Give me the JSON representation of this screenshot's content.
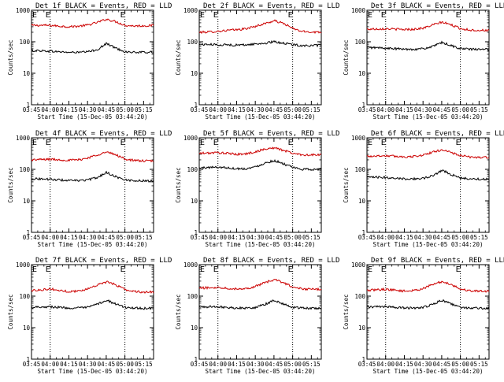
{
  "chart_data": [
    {
      "type": "line",
      "title": "Det 1f BLACK = Events, RED = LLD",
      "xlabel": "Start Time (15-Dec-05 03:44:20)",
      "ylabel": "Counts/sec",
      "yscale": "log",
      "ylim": [
        1,
        1000
      ],
      "xlim_minutes": [
        0,
        98
      ],
      "x_ticks": [
        "03:45",
        "04:00",
        "04:15",
        "04:30",
        "04:45",
        "05:00",
        "05:15"
      ],
      "y_ticks": [
        "1",
        "10",
        "100",
        "1000"
      ],
      "event_markers": [
        {
          "label": "E",
          "time": "04:00"
        },
        {
          "label": "E",
          "time": "05:00"
        }
      ],
      "series": [
        {
          "color": "#cc0000",
          "base": [
            330,
            332,
            330,
            312,
            300,
            312,
            338,
            410,
            520,
            430,
            330,
            318,
            320,
            330
          ]
        },
        {
          "color": "#000000",
          "base": [
            52,
            52,
            50,
            48,
            46,
            46,
            48,
            56,
            88,
            62,
            48,
            46,
            46,
            47
          ]
        }
      ]
    },
    {
      "type": "line",
      "title": "Det 2f BLACK = Events, RED = LLD",
      "xlabel": "Start Time (15-Dec-05 03:44:20)",
      "ylabel": "Counts/sec",
      "yscale": "log",
      "ylim": [
        1,
        1000
      ],
      "xlim_minutes": [
        0,
        98
      ],
      "x_ticks": [
        "03:45",
        "04:00",
        "04:15",
        "04:30",
        "04:45",
        "05:00",
        "05:15"
      ],
      "y_ticks": [
        "1",
        "10",
        "100",
        "1000"
      ],
      "event_markers": [
        {
          "label": "E",
          "time": "04:00"
        },
        {
          "label": "E",
          "time": "05:00"
        }
      ],
      "series": [
        {
          "color": "#cc0000",
          "base": [
            200,
            205,
            215,
            230,
            240,
            260,
            310,
            380,
            460,
            380,
            260,
            210,
            205,
            200
          ]
        },
        {
          "color": "#000000",
          "base": [
            82,
            82,
            80,
            80,
            78,
            80,
            85,
            90,
            100,
            90,
            80,
            76,
            75,
            78
          ]
        }
      ]
    },
    {
      "type": "line",
      "title": "Det 3f BLACK = Events, RED = LLD",
      "xlabel": "Start Time (15-Dec-05 03:44:20)",
      "ylabel": "Counts/sec",
      "yscale": "log",
      "ylim": [
        1,
        1000
      ],
      "xlim_minutes": [
        0,
        98
      ],
      "x_ticks": [
        "03:45",
        "04:00",
        "04:15",
        "04:30",
        "04:45",
        "05:00",
        "05:15"
      ],
      "y_ticks": [
        "1",
        "10",
        "100",
        "1000"
      ],
      "event_markers": [
        {
          "label": "E",
          "time": "04:00"
        },
        {
          "label": "E",
          "time": "05:00"
        }
      ],
      "series": [
        {
          "color": "#cc0000",
          "base": [
            250,
            255,
            260,
            250,
            245,
            250,
            270,
            340,
            420,
            340,
            260,
            235,
            230,
            230
          ]
        },
        {
          "color": "#000000",
          "base": [
            65,
            65,
            62,
            60,
            58,
            58,
            60,
            70,
            95,
            75,
            60,
            58,
            57,
            57
          ]
        }
      ]
    },
    {
      "type": "line",
      "title": "Det 4f BLACK = Events, RED = LLD",
      "xlabel": "Start Time (15-Dec-05 03:44:20)",
      "ylabel": "Counts/sec",
      "yscale": "log",
      "ylim": [
        1,
        1000
      ],
      "xlim_minutes": [
        0,
        98
      ],
      "x_ticks": [
        "03:45",
        "04:00",
        "04:15",
        "04:30",
        "04:45",
        "05:00",
        "05:15"
      ],
      "y_ticks": [
        "1",
        "10",
        "100",
        "1000"
      ],
      "event_markers": [
        {
          "label": "E",
          "time": "04:00"
        },
        {
          "label": "E",
          "time": "05:00"
        }
      ],
      "series": [
        {
          "color": "#cc0000",
          "base": [
            200,
            205,
            210,
            200,
            195,
            200,
            230,
            290,
            350,
            290,
            210,
            190,
            185,
            185
          ]
        },
        {
          "color": "#000000",
          "base": [
            50,
            50,
            48,
            46,
            44,
            44,
            46,
            55,
            80,
            58,
            46,
            44,
            43,
            43
          ]
        }
      ]
    },
    {
      "type": "line",
      "title": "Det 5f BLACK = Events, RED = LLD",
      "xlabel": "Start Time (15-Dec-05 03:44:20)",
      "ylabel": "Counts/sec",
      "yscale": "log",
      "ylim": [
        1,
        1000
      ],
      "xlim_minutes": [
        0,
        98
      ],
      "x_ticks": [
        "03:45",
        "04:00",
        "04:15",
        "04:30",
        "04:45",
        "05:00",
        "05:15"
      ],
      "y_ticks": [
        "1",
        "10",
        "100",
        "1000"
      ],
      "event_markers": [
        {
          "label": "E",
          "time": "04:00"
        },
        {
          "label": "E",
          "time": "05:00"
        }
      ],
      "series": [
        {
          "color": "#cc0000",
          "base": [
            320,
            330,
            340,
            320,
            300,
            310,
            360,
            440,
            480,
            400,
            320,
            290,
            285,
            290
          ]
        },
        {
          "color": "#000000",
          "base": [
            110,
            115,
            118,
            112,
            105,
            105,
            120,
            160,
            190,
            150,
            112,
            100,
            100,
            100
          ]
        }
      ]
    },
    {
      "type": "line",
      "title": "Det 6f BLACK = Events, RED = LLD",
      "xlabel": "Start Time (15-Dec-05 03:44:20)",
      "ylabel": "Counts/sec",
      "yscale": "log",
      "ylim": [
        1,
        1000
      ],
      "xlim_minutes": [
        0,
        98
      ],
      "x_ticks": [
        "03:45",
        "04:00",
        "04:15",
        "04:30",
        "04:45",
        "05:00",
        "05:15"
      ],
      "y_ticks": [
        "1",
        "10",
        "100",
        "1000"
      ],
      "event_markers": [
        {
          "label": "E",
          "time": "04:00"
        },
        {
          "label": "E",
          "time": "05:00"
        }
      ],
      "series": [
        {
          "color": "#cc0000",
          "base": [
            260,
            265,
            270,
            260,
            250,
            255,
            285,
            350,
            420,
            340,
            270,
            245,
            240,
            240
          ]
        },
        {
          "color": "#000000",
          "base": [
            55,
            56,
            55,
            53,
            50,
            50,
            52,
            62,
            95,
            68,
            52,
            50,
            49,
            49
          ]
        }
      ]
    },
    {
      "type": "line",
      "title": "Det 7f BLACK = Events, RED = LLD",
      "xlabel": "Start Time (15-Dec-05 03:44:20)",
      "ylabel": "Counts/sec",
      "yscale": "log",
      "ylim": [
        1,
        1000
      ],
      "xlim_minutes": [
        0,
        98
      ],
      "x_ticks": [
        "03:45",
        "04:00",
        "04:15",
        "04:30",
        "04:45",
        "05:00",
        "05:15"
      ],
      "y_ticks": [
        "1",
        "10",
        "100",
        "1000"
      ],
      "event_markers": [
        {
          "label": "E",
          "time": "04:00"
        },
        {
          "label": "E",
          "time": "05:00"
        }
      ],
      "series": [
        {
          "color": "#cc0000",
          "base": [
            150,
            160,
            170,
            150,
            140,
            145,
            170,
            230,
            280,
            230,
            160,
            140,
            135,
            135
          ]
        },
        {
          "color": "#000000",
          "base": [
            45,
            46,
            46,
            44,
            42,
            42,
            44,
            55,
            75,
            55,
            44,
            42,
            41,
            41
          ]
        }
      ]
    },
    {
      "type": "line",
      "title": "Det 8f BLACK = Events, RED = LLD",
      "xlabel": "Start Time (15-Dec-05 03:44:20)",
      "ylabel": "Counts/sec",
      "yscale": "log",
      "ylim": [
        1,
        1000
      ],
      "xlim_minutes": [
        0,
        98
      ],
      "x_ticks": [
        "03:45",
        "04:00",
        "04:15",
        "04:30",
        "04:45",
        "05:00",
        "05:15"
      ],
      "y_ticks": [
        "1",
        "10",
        "100",
        "1000"
      ],
      "event_markers": [
        {
          "label": "E",
          "time": "04:00"
        },
        {
          "label": "E",
          "time": "05:00"
        }
      ],
      "series": [
        {
          "color": "#cc0000",
          "base": [
            180,
            185,
            190,
            180,
            170,
            175,
            205,
            270,
            330,
            270,
            190,
            170,
            165,
            165
          ]
        },
        {
          "color": "#000000",
          "base": [
            45,
            46,
            46,
            44,
            42,
            42,
            44,
            55,
            75,
            55,
            44,
            42,
            41,
            41
          ]
        }
      ]
    },
    {
      "type": "line",
      "title": "Det 9f BLACK = Events, RED = LLD",
      "xlabel": "Start Time (15-Dec-05 03:44:20)",
      "ylabel": "Counts/sec",
      "yscale": "log",
      "ylim": [
        1,
        1000
      ],
      "xlim_minutes": [
        0,
        98
      ],
      "x_ticks": [
        "03:45",
        "04:00",
        "04:15",
        "04:30",
        "04:45",
        "05:00",
        "05:15"
      ],
      "y_ticks": [
        "1",
        "10",
        "100",
        "1000"
      ],
      "event_markers": [
        {
          "label": "E",
          "time": "04:00"
        },
        {
          "label": "E",
          "time": "05:00"
        }
      ],
      "series": [
        {
          "color": "#cc0000",
          "base": [
            150,
            160,
            165,
            155,
            145,
            150,
            175,
            235,
            290,
            235,
            165,
            148,
            145,
            145
          ]
        },
        {
          "color": "#000000",
          "base": [
            45,
            46,
            46,
            44,
            42,
            42,
            44,
            55,
            75,
            55,
            44,
            42,
            41,
            41
          ]
        }
      ]
    }
  ]
}
